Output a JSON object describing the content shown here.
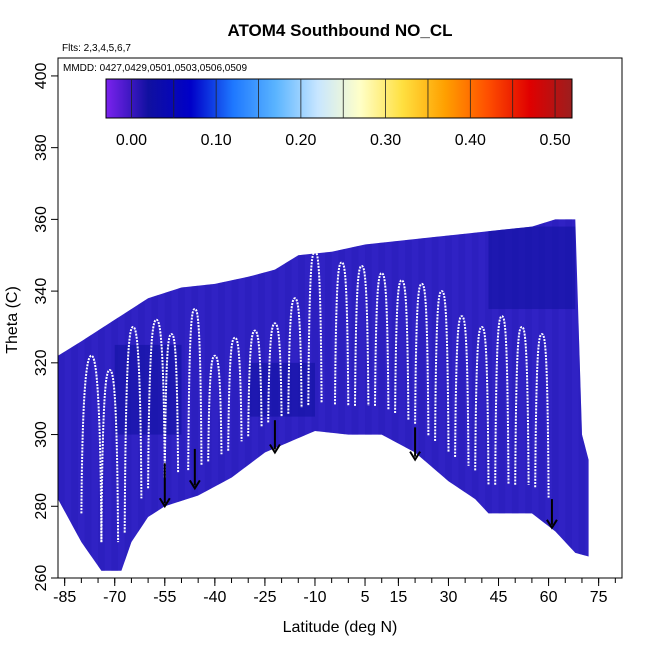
{
  "chart_data": {
    "type": "heatmap",
    "title": "ATOM4 Southbound NO_CL",
    "flights_text": "Flts: 2,3,4,5,6,7",
    "mmdd_text": "MMDD: 0427,0429,0501,0503,0506,0509",
    "xlabel": "Latitude (deg N)",
    "ylabel": "Theta (C)",
    "xlim": [
      -87,
      82
    ],
    "ylim": [
      260,
      405
    ],
    "x_ticks": [
      -85,
      -70,
      -55,
      -40,
      -25,
      -10,
      5,
      15,
      30,
      45,
      60,
      75
    ],
    "x_tick_labels": [
      "-85",
      "-70",
      "-55",
      "-40",
      "-25",
      "-10",
      "5",
      "15",
      "30",
      "45",
      "60",
      "75"
    ],
    "y_ticks": [
      260,
      280,
      300,
      320,
      340,
      360,
      380,
      400
    ],
    "y_tick_labels": [
      "260",
      "280",
      "300",
      "320",
      "340",
      "360",
      "380",
      "400"
    ],
    "colorbar": {
      "min": -0.03,
      "max": 0.52,
      "ticks": [
        0.0,
        0.1,
        0.2,
        0.3,
        0.4,
        0.5
      ],
      "tick_labels": [
        "0.00",
        "0.10",
        "0.20",
        "0.30",
        "0.40",
        "0.50"
      ],
      "colors": [
        "#7B22EE",
        "#1010A0",
        "#0000C8",
        "#1E78FF",
        "#5AB4FF",
        "#C8E6FF",
        "#FFFFC8",
        "#FFE040",
        "#FFA000",
        "#FF5000",
        "#E00000",
        "#9C1E1E"
      ]
    },
    "field_color": "#3022C4",
    "upper_boundary": [
      [
        -87,
        322
      ],
      [
        -80,
        326
      ],
      [
        -70,
        332
      ],
      [
        -60,
        338
      ],
      [
        -50,
        341
      ],
      [
        -40,
        342
      ],
      [
        -30,
        344
      ],
      [
        -22,
        346
      ],
      [
        -15,
        350
      ],
      [
        -5,
        351
      ],
      [
        5,
        353
      ],
      [
        15,
        354
      ],
      [
        25,
        355
      ],
      [
        35,
        356
      ],
      [
        45,
        357
      ],
      [
        55,
        358
      ],
      [
        62,
        360
      ],
      [
        68,
        360
      ],
      [
        70,
        300
      ],
      [
        72,
        293
      ]
    ],
    "lower_boundary": [
      [
        -87,
        282
      ],
      [
        -80,
        270
      ],
      [
        -74,
        262
      ],
      [
        -68,
        262
      ],
      [
        -65,
        270
      ],
      [
        -60,
        277
      ],
      [
        -55,
        280
      ],
      [
        -45,
        283
      ],
      [
        -35,
        288
      ],
      [
        -25,
        295
      ],
      [
        -15,
        299
      ],
      [
        -10,
        301
      ],
      [
        0,
        300
      ],
      [
        10,
        300
      ],
      [
        20,
        295
      ],
      [
        30,
        287
      ],
      [
        38,
        282
      ],
      [
        42,
        278
      ],
      [
        48,
        278
      ],
      [
        55,
        278
      ],
      [
        62,
        273
      ],
      [
        68,
        267
      ],
      [
        72,
        266
      ]
    ],
    "light_patches": [
      {
        "x": [
          42,
          68
        ],
        "y": [
          335,
          358
        ],
        "value": 0.06
      },
      {
        "x": [
          -30,
          -10
        ],
        "y": [
          305,
          320
        ],
        "value": 0.05
      },
      {
        "x": [
          -70,
          -50
        ],
        "y": [
          300,
          325
        ],
        "value": 0.02
      }
    ],
    "flight_profiles": [
      {
        "lat_lo": -80,
        "lat_hi": -74,
        "top": 322
      },
      {
        "lat_lo": -74,
        "lat_hi": -69,
        "top": 318
      },
      {
        "lat_lo": -67,
        "lat_hi": -62,
        "top": 330
      },
      {
        "lat_lo": -60,
        "lat_hi": -55,
        "top": 332
      },
      {
        "lat_lo": -55,
        "lat_hi": -51,
        "top": 328
      },
      {
        "lat_lo": -48,
        "lat_hi": -44,
        "top": 335
      },
      {
        "lat_lo": -42,
        "lat_hi": -38,
        "top": 322
      },
      {
        "lat_lo": -36,
        "lat_hi": -32,
        "top": 327
      },
      {
        "lat_lo": -30,
        "lat_hi": -26,
        "top": 329
      },
      {
        "lat_lo": -24,
        "lat_hi": -20,
        "top": 331
      },
      {
        "lat_lo": -18,
        "lat_hi": -14,
        "top": 338
      },
      {
        "lat_lo": -12,
        "lat_hi": -8,
        "top": 351
      },
      {
        "lat_lo": -4,
        "lat_hi": 0,
        "top": 348
      },
      {
        "lat_lo": 2,
        "lat_hi": 6,
        "top": 347
      },
      {
        "lat_lo": 8,
        "lat_hi": 12,
        "top": 345
      },
      {
        "lat_lo": 14,
        "lat_hi": 18,
        "top": 343
      },
      {
        "lat_lo": 20,
        "lat_hi": 24,
        "top": 342
      },
      {
        "lat_lo": 26,
        "lat_hi": 30,
        "top": 340
      },
      {
        "lat_lo": 32,
        "lat_hi": 36,
        "top": 333
      },
      {
        "lat_lo": 38,
        "lat_hi": 42,
        "top": 330
      },
      {
        "lat_lo": 44,
        "lat_hi": 48,
        "top": 333
      },
      {
        "lat_lo": 50,
        "lat_hi": 54,
        "top": 330
      },
      {
        "lat_lo": 56,
        "lat_hi": 60,
        "top": 328
      }
    ],
    "arrows": [
      {
        "lat": -55,
        "theta_top": 292,
        "theta_tip": 280
      },
      {
        "lat": -46,
        "theta_top": 296,
        "theta_tip": 285
      },
      {
        "lat": -22,
        "theta_top": 304,
        "theta_tip": 295
      },
      {
        "lat": 20,
        "theta_top": 302,
        "theta_tip": 293
      },
      {
        "lat": 61,
        "theta_top": 282,
        "theta_tip": 274
      }
    ]
  }
}
